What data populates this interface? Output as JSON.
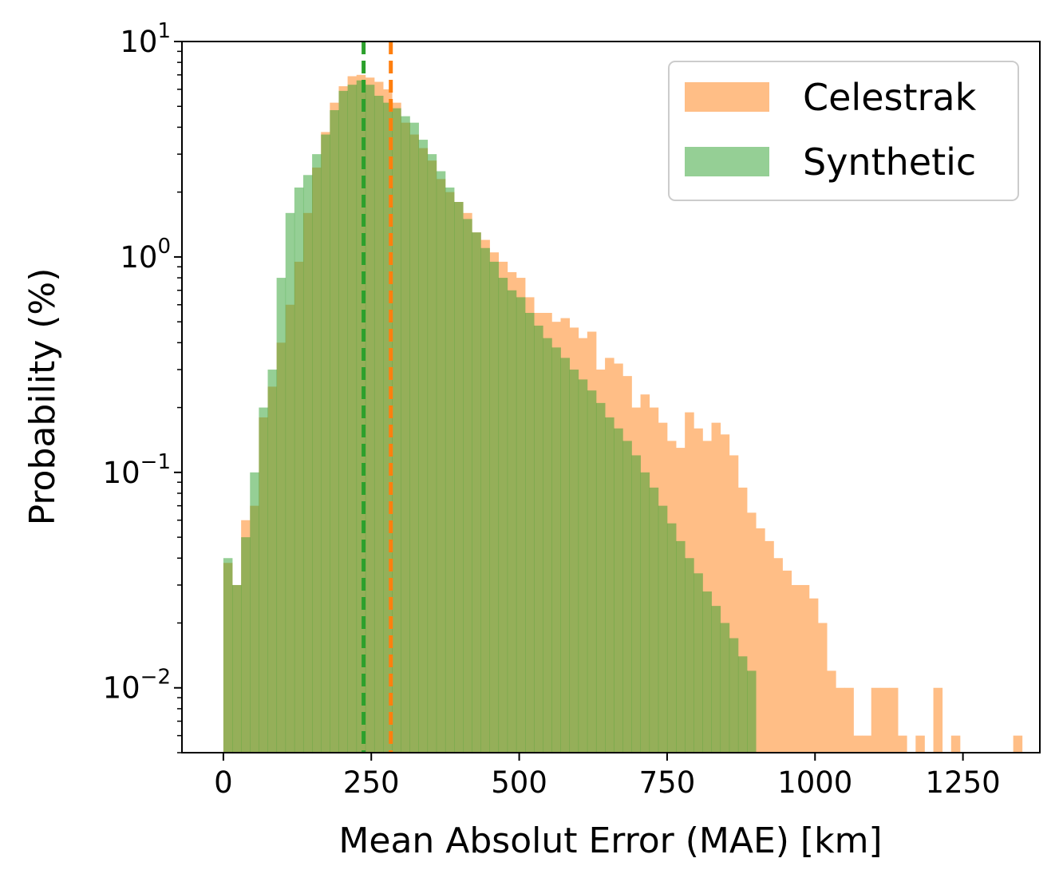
{
  "chart_data": {
    "type": "histogram",
    "title": "",
    "xlabel": "Mean Absolut Error (MAE) [km]",
    "ylabel": "Probability (%)",
    "xlim": [
      -70,
      1380
    ],
    "ylim": [
      0.005,
      10
    ],
    "yscale": "log",
    "x_ticks": [
      0,
      250,
      500,
      750,
      1000,
      1250
    ],
    "x_tick_labels": [
      "0",
      "250",
      "500",
      "750",
      "1000",
      "1250"
    ],
    "y_ticks": [
      {
        "value": 10,
        "base": "10",
        "exponent": "1"
      },
      {
        "value": 1,
        "base": "10",
        "exponent": "0"
      },
      {
        "value": 0.1,
        "base": "10",
        "exponent": "−1"
      },
      {
        "value": 0.01,
        "base": "10",
        "exponent": "−2"
      }
    ],
    "bin_width": 15,
    "series": [
      {
        "name": "Celestrak",
        "color": "#ffbe86",
        "fill_opacity": 1.0,
        "median_line": 283,
        "line_color": "#ff7f0e",
        "bins": [
          [
            0,
            0.038
          ],
          [
            15,
            0.03
          ],
          [
            30,
            0.06
          ],
          [
            45,
            0.07
          ],
          [
            60,
            0.18
          ],
          [
            75,
            0.25
          ],
          [
            90,
            0.4
          ],
          [
            105,
            0.6
          ],
          [
            120,
            0.95
          ],
          [
            135,
            1.6
          ],
          [
            150,
            2.6
          ],
          [
            165,
            3.8
          ],
          [
            180,
            5.2
          ],
          [
            195,
            6.2
          ],
          [
            210,
            6.9
          ],
          [
            225,
            7.0
          ],
          [
            240,
            6.8
          ],
          [
            255,
            6.5
          ],
          [
            270,
            6.0
          ],
          [
            285,
            5.2
          ],
          [
            300,
            4.2
          ],
          [
            315,
            3.7
          ],
          [
            330,
            3.2
          ],
          [
            345,
            2.8
          ],
          [
            360,
            2.3
          ],
          [
            375,
            2.0
          ],
          [
            390,
            1.8
          ],
          [
            405,
            1.6
          ],
          [
            420,
            1.3
          ],
          [
            435,
            1.2
          ],
          [
            450,
            1.05
          ],
          [
            465,
            0.95
          ],
          [
            480,
            0.85
          ],
          [
            495,
            0.8
          ],
          [
            510,
            0.65
          ],
          [
            525,
            0.55
          ],
          [
            540,
            0.55
          ],
          [
            555,
            0.5
          ],
          [
            570,
            0.52
          ],
          [
            585,
            0.47
          ],
          [
            600,
            0.42
          ],
          [
            615,
            0.45
          ],
          [
            630,
            0.3
          ],
          [
            645,
            0.34
          ],
          [
            660,
            0.32
          ],
          [
            675,
            0.28
          ],
          [
            690,
            0.2
          ],
          [
            705,
            0.23
          ],
          [
            720,
            0.2
          ],
          [
            735,
            0.17
          ],
          [
            750,
            0.14
          ],
          [
            765,
            0.13
          ],
          [
            780,
            0.19
          ],
          [
            795,
            0.16
          ],
          [
            810,
            0.14
          ],
          [
            825,
            0.17
          ],
          [
            840,
            0.15
          ],
          [
            855,
            0.12
          ],
          [
            870,
            0.085
          ],
          [
            885,
            0.065
          ],
          [
            900,
            0.055
          ],
          [
            915,
            0.048
          ],
          [
            930,
            0.04
          ],
          [
            945,
            0.035
          ],
          [
            960,
            0.03
          ],
          [
            975,
            0.03
          ],
          [
            990,
            0.026
          ],
          [
            1005,
            0.02
          ],
          [
            1020,
            0.012
          ],
          [
            1035,
            0.01
          ],
          [
            1050,
            0.01
          ],
          [
            1065,
            0.006
          ],
          [
            1080,
            0.006
          ],
          [
            1095,
            0.01
          ],
          [
            1110,
            0.01
          ],
          [
            1125,
            0.01
          ],
          [
            1140,
            0.006
          ],
          [
            1170,
            0.006
          ],
          [
            1200,
            0.01
          ],
          [
            1230,
            0.006
          ],
          [
            1335,
            0.006
          ]
        ]
      },
      {
        "name": "Synthetic",
        "color": "#2ca02c",
        "fill_opacity": 0.5,
        "median_line": 237,
        "line_color": "#2ca02c",
        "bins": [
          [
            0,
            0.04
          ],
          [
            15,
            0.03
          ],
          [
            30,
            0.05
          ],
          [
            45,
            0.1
          ],
          [
            60,
            0.2
          ],
          [
            75,
            0.3
          ],
          [
            90,
            0.8
          ],
          [
            105,
            1.6
          ],
          [
            120,
            2.1
          ],
          [
            135,
            2.4
          ],
          [
            150,
            3.0
          ],
          [
            165,
            3.7
          ],
          [
            180,
            4.8
          ],
          [
            195,
            5.9
          ],
          [
            210,
            6.3
          ],
          [
            225,
            6.6
          ],
          [
            240,
            6.3
          ],
          [
            255,
            5.6
          ],
          [
            270,
            5.2
          ],
          [
            285,
            4.9
          ],
          [
            300,
            4.5
          ],
          [
            315,
            4.2
          ],
          [
            330,
            3.5
          ],
          [
            345,
            3.0
          ],
          [
            360,
            2.5
          ],
          [
            375,
            2.1
          ],
          [
            390,
            1.8
          ],
          [
            405,
            1.5
          ],
          [
            420,
            1.3
          ],
          [
            435,
            1.1
          ],
          [
            450,
            0.95
          ],
          [
            465,
            0.8
          ],
          [
            480,
            0.7
          ],
          [
            495,
            0.65
          ],
          [
            510,
            0.55
          ],
          [
            525,
            0.48
          ],
          [
            540,
            0.42
          ],
          [
            555,
            0.38
          ],
          [
            570,
            0.34
          ],
          [
            585,
            0.3
          ],
          [
            600,
            0.27
          ],
          [
            615,
            0.24
          ],
          [
            630,
            0.21
          ],
          [
            645,
            0.18
          ],
          [
            660,
            0.16
          ],
          [
            675,
            0.14
          ],
          [
            690,
            0.12
          ],
          [
            705,
            0.1
          ],
          [
            720,
            0.085
          ],
          [
            735,
            0.07
          ],
          [
            750,
            0.058
          ],
          [
            765,
            0.048
          ],
          [
            780,
            0.04
          ],
          [
            795,
            0.034
          ],
          [
            810,
            0.028
          ],
          [
            825,
            0.024
          ],
          [
            840,
            0.02
          ],
          [
            855,
            0.017
          ],
          [
            870,
            0.014
          ],
          [
            885,
            0.012
          ]
        ]
      }
    ],
    "legend": {
      "position": "top-right",
      "entries": [
        {
          "label": "Celestrak",
          "color": "#ffbe86"
        },
        {
          "label": "Synthetic",
          "color": "#95cf95"
        }
      ]
    }
  }
}
